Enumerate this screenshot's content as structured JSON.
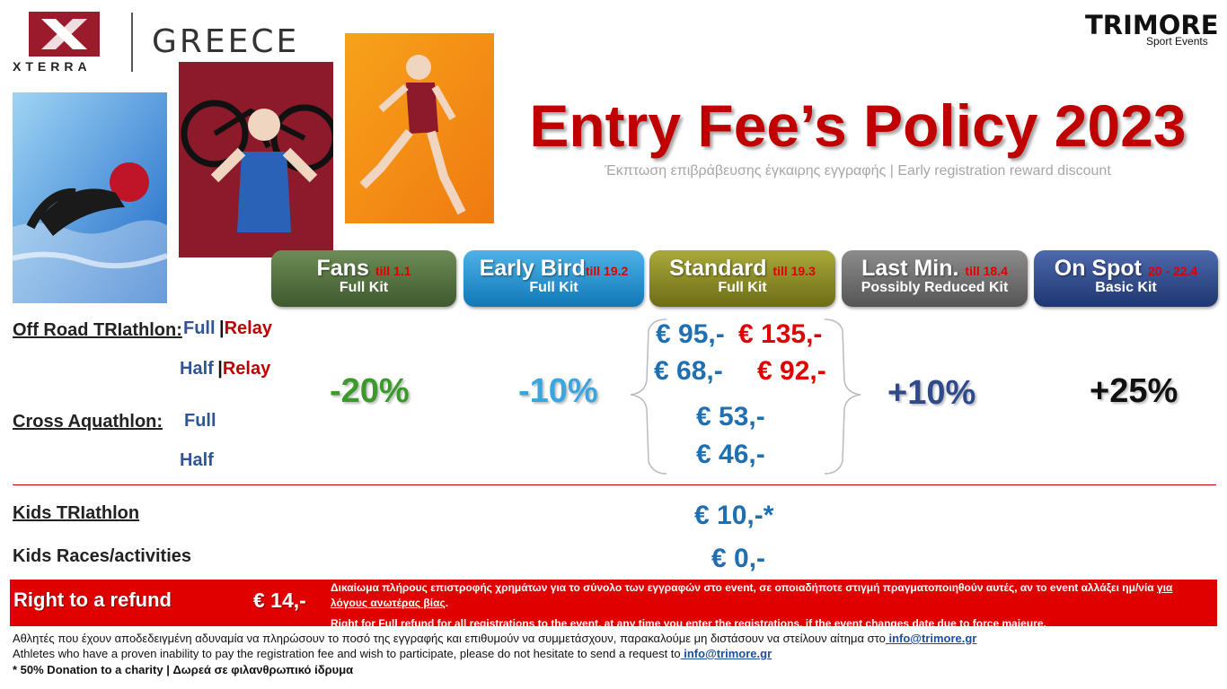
{
  "brand": {
    "xterra": "XTERRA",
    "greece": "GREECE",
    "trimore": "TRIMORE",
    "trimore_sub": "Sport Events"
  },
  "header": {
    "title": "Entry Fee’s Policy 2023",
    "subtitle": "Έκπτωση επιβράβευσης έγκαιρης εγγραφής | Early registration reward discount"
  },
  "tiers": [
    {
      "name": "Fans",
      "date": "till 1.1",
      "kit": "Full Kit",
      "color": "#4d6b3a"
    },
    {
      "name": "Early Bird",
      "date": "till 19.2",
      "kit": "Full Kit",
      "color": "#1b8fd1"
    },
    {
      "name": "Standard",
      "date": "till 19.3",
      "kit": "Full Kit",
      "color": "#8a8a1f"
    },
    {
      "name": "Last Min.",
      "date": "till 18.4",
      "kit": "Possibly Reduced Kit",
      "color": "#6b6b6b"
    },
    {
      "name": "On Spot",
      "date": "20 - 22.4",
      "kit": "Basic Kit",
      "color": "#2e4a8c"
    }
  ],
  "categories": {
    "offroad": {
      "label": "Off Road TRIathlon:",
      "full": "Full",
      "relay": "Relay",
      "half": "Half",
      "half_relay": "Relay",
      "sep": "|"
    },
    "aquathlon": {
      "label": "Cross Aquathlon:",
      "full": "Full",
      "half": "Half"
    },
    "kids_tri": "Kids TRIathlon",
    "kids_races": "Kids Races/activities"
  },
  "discounts": {
    "fans": "-20%",
    "early": "-10%",
    "last": "+10%",
    "spot": "+25%"
  },
  "prices": {
    "offroad_full": "€ 95,-",
    "offroad_full_relay": "€ 135,-",
    "offroad_half": "€ 68,-",
    "offroad_half_relay": "€ 92,-",
    "aqua_full": "€ 53,-",
    "aqua_half": "€ 46,-",
    "kids_tri": "€ 10,-*",
    "kids_races": "€ 0,-"
  },
  "refund": {
    "label": "Right to a refund",
    "price": "€ 14,-",
    "gr_text_1": "Δικαίωμα πλήρους επιστροφής χρημάτων για το σύνολο των εγγραφών στο event, σε οποιαδήποτε στιγμή πραγματοποιηθούν αυτές, αν το event αλλάξει ημ/νία",
    "gr_text_2": "για λόγους ανωτέρας βίας",
    "gr_text_3": ".",
    "en_text_1": "Right for Full refund for all registrations to the event, at any time you enter the registrations, if the event changes",
    "en_text_2": "date due to force majeure",
    "en_text_3": "."
  },
  "footer": {
    "gr_line": "Αθλητές που έχουν αποδεδειγμένη αδυναμία να πληρώσουν το ποσό της εγγραφής και επιθυμούν να συμμετάσχουν, παρακαλούμε μη διστάσουν να στείλουν αίτημα στο",
    "gr_email": " info@trimore.gr",
    "en_line": "Athletes who have a proven inability to pay the registration fee and wish to participate, please do not hesitate to send a request to",
    "en_email": " info@trimore.gr",
    "note": "* 50% Donation to a charity | Δωρεά σε φιλανθρωπικό ίδρυμα"
  }
}
